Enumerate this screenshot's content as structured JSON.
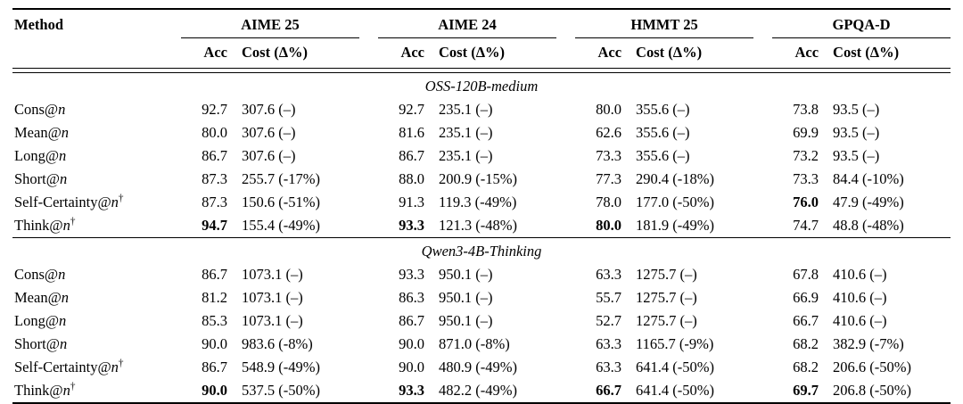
{
  "table": {
    "columns": {
      "method": "Method",
      "acc": "Acc",
      "cost": "Cost (Δ%)"
    },
    "groups": [
      "AIME 25",
      "AIME 24",
      "HMMT 25",
      "GPQA-D"
    ],
    "sections": [
      {
        "title": "OSS-120B-medium",
        "rows": [
          {
            "method": {
              "base": "Cons@",
              "var": "n",
              "dagger": ""
            },
            "cells": [
              {
                "acc": "92.7",
                "bold_acc": false,
                "cost": "307.6 (–)"
              },
              {
                "acc": "92.7",
                "bold_acc": false,
                "cost": "235.1 (–)"
              },
              {
                "acc": "80.0",
                "bold_acc": false,
                "cost": "355.6 (–)"
              },
              {
                "acc": "73.8",
                "bold_acc": false,
                "cost": "93.5 (–)"
              }
            ]
          },
          {
            "method": {
              "base": "Mean@",
              "var": "n",
              "dagger": ""
            },
            "cells": [
              {
                "acc": "80.0",
                "bold_acc": false,
                "cost": "307.6 (–)"
              },
              {
                "acc": "81.6",
                "bold_acc": false,
                "cost": "235.1 (–)"
              },
              {
                "acc": "62.6",
                "bold_acc": false,
                "cost": "355.6 (–)"
              },
              {
                "acc": "69.9",
                "bold_acc": false,
                "cost": "93.5 (–)"
              }
            ]
          },
          {
            "method": {
              "base": "Long@",
              "var": "n",
              "dagger": ""
            },
            "cells": [
              {
                "acc": "86.7",
                "bold_acc": false,
                "cost": "307.6 (–)"
              },
              {
                "acc": "86.7",
                "bold_acc": false,
                "cost": "235.1 (–)"
              },
              {
                "acc": "73.3",
                "bold_acc": false,
                "cost": "355.6 (–)"
              },
              {
                "acc": "73.2",
                "bold_acc": false,
                "cost": "93.5 (–)"
              }
            ]
          },
          {
            "method": {
              "base": "Short@",
              "var": "n",
              "dagger": ""
            },
            "cells": [
              {
                "acc": "87.3",
                "bold_acc": false,
                "cost": "255.7 (-17%)"
              },
              {
                "acc": "88.0",
                "bold_acc": false,
                "cost": "200.9 (-15%)"
              },
              {
                "acc": "77.3",
                "bold_acc": false,
                "cost": "290.4 (-18%)"
              },
              {
                "acc": "73.3",
                "bold_acc": false,
                "cost": "84.4 (-10%)"
              }
            ]
          },
          {
            "method": {
              "base": "Self-Certainty@",
              "var": "n",
              "dagger": "†"
            },
            "cells": [
              {
                "acc": "87.3",
                "bold_acc": false,
                "cost": "150.6 (-51%)"
              },
              {
                "acc": "91.3",
                "bold_acc": false,
                "cost": "119.3 (-49%)"
              },
              {
                "acc": "78.0",
                "bold_acc": false,
                "cost": "177.0 (-50%)"
              },
              {
                "acc": "76.0",
                "bold_acc": true,
                "cost": "47.9 (-49%)"
              }
            ]
          },
          {
            "method": {
              "base": "Think@",
              "var": "n",
              "dagger": "†"
            },
            "cells": [
              {
                "acc": "94.7",
                "bold_acc": true,
                "cost": "155.4 (-49%)"
              },
              {
                "acc": "93.3",
                "bold_acc": true,
                "cost": "121.3 (-48%)"
              },
              {
                "acc": "80.0",
                "bold_acc": true,
                "cost": "181.9 (-49%)"
              },
              {
                "acc": "74.7",
                "bold_acc": false,
                "cost": "48.8 (-48%)"
              }
            ]
          }
        ]
      },
      {
        "title": "Qwen3-4B-Thinking",
        "rows": [
          {
            "method": {
              "base": "Cons@",
              "var": "n",
              "dagger": ""
            },
            "cells": [
              {
                "acc": "86.7",
                "bold_acc": false,
                "cost": "1073.1 (–)"
              },
              {
                "acc": "93.3",
                "bold_acc": false,
                "cost": "950.1 (–)"
              },
              {
                "acc": "63.3",
                "bold_acc": false,
                "cost": "1275.7 (–)"
              },
              {
                "acc": "67.8",
                "bold_acc": false,
                "cost": "410.6 (–)"
              }
            ]
          },
          {
            "method": {
              "base": "Mean@",
              "var": "n",
              "dagger": ""
            },
            "cells": [
              {
                "acc": "81.2",
                "bold_acc": false,
                "cost": "1073.1 (–)"
              },
              {
                "acc": "86.3",
                "bold_acc": false,
                "cost": "950.1 (–)"
              },
              {
                "acc": "55.7",
                "bold_acc": false,
                "cost": "1275.7 (–)"
              },
              {
                "acc": "66.9",
                "bold_acc": false,
                "cost": "410.6 (–)"
              }
            ]
          },
          {
            "method": {
              "base": "Long@",
              "var": "n",
              "dagger": ""
            },
            "cells": [
              {
                "acc": "85.3",
                "bold_acc": false,
                "cost": "1073.1 (–)"
              },
              {
                "acc": "86.7",
                "bold_acc": false,
                "cost": "950.1 (–)"
              },
              {
                "acc": "52.7",
                "bold_acc": false,
                "cost": "1275.7 (–)"
              },
              {
                "acc": "66.7",
                "bold_acc": false,
                "cost": "410.6 (–)"
              }
            ]
          },
          {
            "method": {
              "base": "Short@",
              "var": "n",
              "dagger": ""
            },
            "cells": [
              {
                "acc": "90.0",
                "bold_acc": false,
                "cost": "983.6 (-8%)"
              },
              {
                "acc": "90.0",
                "bold_acc": false,
                "cost": "871.0 (-8%)"
              },
              {
                "acc": "63.3",
                "bold_acc": false,
                "cost": "1165.7 (-9%)"
              },
              {
                "acc": "68.2",
                "bold_acc": false,
                "cost": "382.9 (-7%)"
              }
            ]
          },
          {
            "method": {
              "base": "Self-Certainty@",
              "var": "n",
              "dagger": "†"
            },
            "cells": [
              {
                "acc": "86.7",
                "bold_acc": false,
                "cost": "548.9 (-49%)"
              },
              {
                "acc": "90.0",
                "bold_acc": false,
                "cost": "480.9 (-49%)"
              },
              {
                "acc": "63.3",
                "bold_acc": false,
                "cost": "641.4 (-50%)"
              },
              {
                "acc": "68.2",
                "bold_acc": false,
                "cost": "206.6 (-50%)"
              }
            ]
          },
          {
            "method": {
              "base": "Think@",
              "var": "n",
              "dagger": "†"
            },
            "cells": [
              {
                "acc": "90.0",
                "bold_acc": true,
                "cost": "537.5 (-50%)"
              },
              {
                "acc": "93.3",
                "bold_acc": true,
                "cost": "482.2 (-49%)"
              },
              {
                "acc": "66.7",
                "bold_acc": true,
                "cost": "641.4 (-50%)"
              },
              {
                "acc": "69.7",
                "bold_acc": true,
                "cost": "206.8 (-50%)"
              }
            ]
          }
        ]
      }
    ]
  }
}
